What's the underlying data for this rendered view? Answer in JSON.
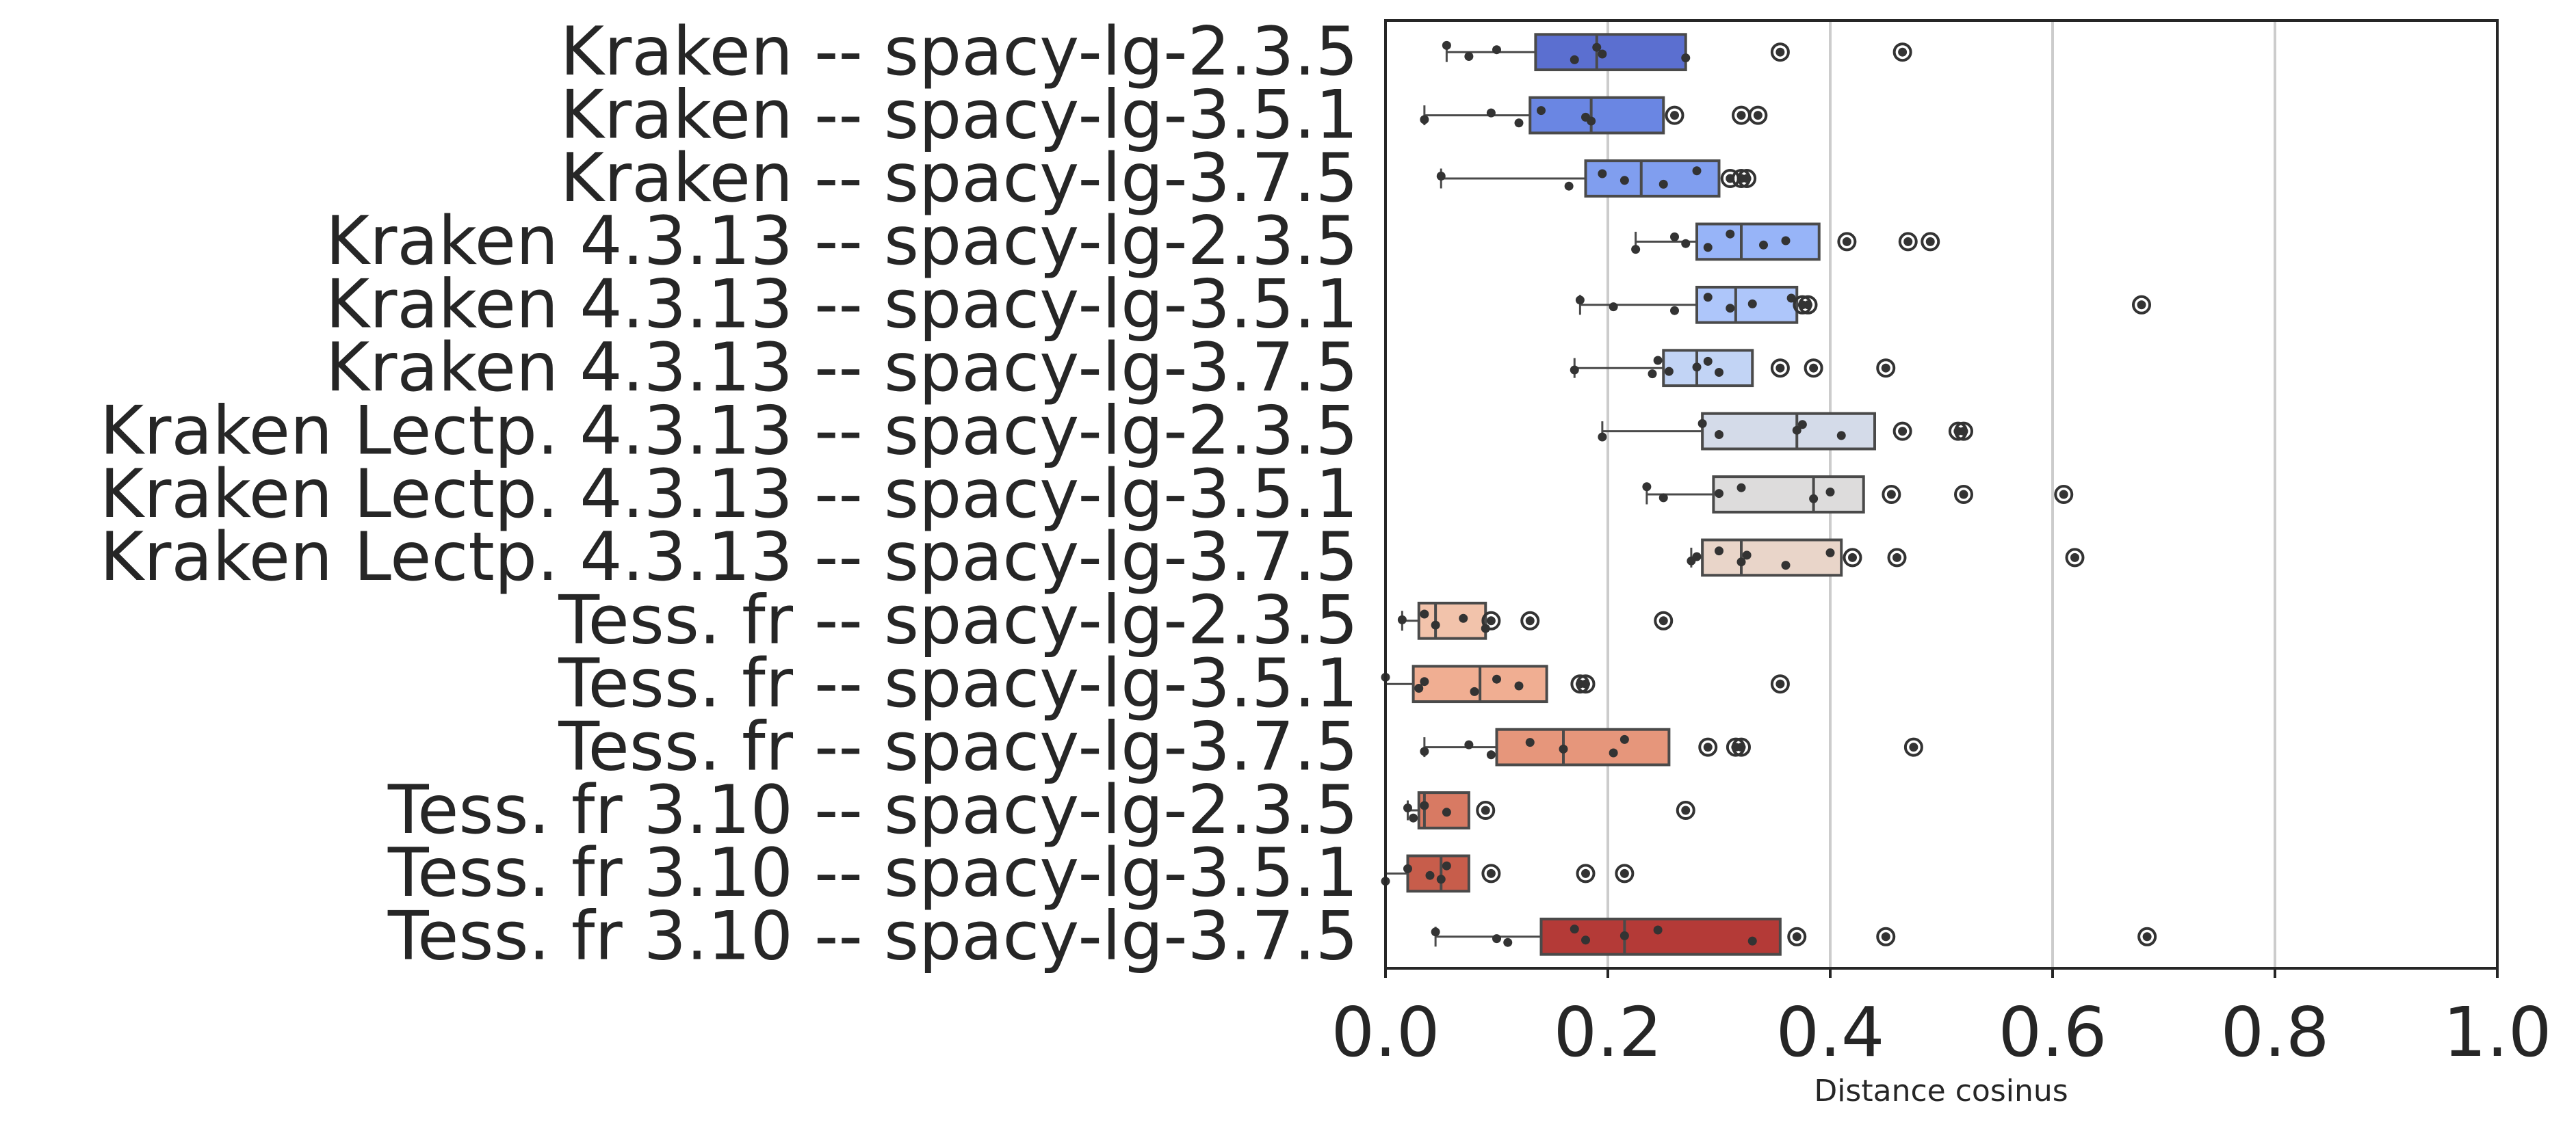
{
  "chart_data": {
    "type": "box",
    "orientation": "horizontal",
    "xlabel": "Distance cosinus",
    "xlim": [
      0.0,
      1.0
    ],
    "xticks": [
      "0.0",
      "0.2",
      "0.4",
      "0.6",
      "0.8",
      "1.0"
    ],
    "grid": "vertical",
    "categories": [
      "Kraken -- spacy-lg-2.3.5",
      "Kraken -- spacy-lg-3.5.1",
      "Kraken -- spacy-lg-3.7.5",
      "Kraken 4.3.13 -- spacy-lg-2.3.5",
      "Kraken 4.3.13 -- spacy-lg-3.5.1",
      "Kraken 4.3.13 -- spacy-lg-3.7.5",
      "Kraken Lectp. 4.3.13 -- spacy-lg-2.3.5",
      "Kraken Lectp. 4.3.13 -- spacy-lg-3.5.1",
      "Kraken Lectp. 4.3.13 -- spacy-lg-3.7.5",
      "Tess. fr -- spacy-lg-2.3.5",
      "Tess. fr -- spacy-lg-3.5.1",
      "Tess. fr -- spacy-lg-3.7.5",
      "Tess. fr 3.10 -- spacy-lg-2.3.5",
      "Tess. fr 3.10 -- spacy-lg-3.5.1",
      "Tess. fr 3.10 -- spacy-lg-3.7.5"
    ],
    "colors": [
      "#5b6fd0",
      "#6a86e3",
      "#809eef",
      "#97b4f8",
      "#aec6fa",
      "#c2d4f5",
      "#d4dbe9",
      "#dddcdc",
      "#e9d5c9",
      "#f2c3ab",
      "#f0ae92",
      "#e6967b",
      "#d87a63",
      "#c75d4b",
      "#b43a37"
    ],
    "boxes": [
      {
        "whislo": 0.055,
        "q1": 0.135,
        "med": 0.19,
        "q3": 0.27,
        "whishi": 0.27,
        "points": [
          0.055,
          0.075,
          0.1,
          0.17,
          0.19,
          0.195,
          0.27
        ],
        "outliers": [
          0.355,
          0.465
        ]
      },
      {
        "whislo": 0.035,
        "q1": 0.13,
        "med": 0.185,
        "q3": 0.25,
        "whishi": 0.25,
        "points": [
          0.035,
          0.095,
          0.12,
          0.14,
          0.18,
          0.185
        ],
        "outliers": [
          0.26,
          0.32,
          0.335
        ]
      },
      {
        "whislo": 0.05,
        "q1": 0.18,
        "med": 0.23,
        "q3": 0.3,
        "whishi": 0.3,
        "points": [
          0.05,
          0.165,
          0.195,
          0.215,
          0.25,
          0.28
        ],
        "outliers": [
          0.31,
          0.32,
          0.325
        ]
      },
      {
        "whislo": 0.225,
        "q1": 0.28,
        "med": 0.32,
        "q3": 0.39,
        "whishi": 0.39,
        "points": [
          0.225,
          0.26,
          0.27,
          0.29,
          0.31,
          0.34,
          0.36
        ],
        "outliers": [
          0.415,
          0.47,
          0.49
        ]
      },
      {
        "whislo": 0.175,
        "q1": 0.28,
        "med": 0.315,
        "q3": 0.37,
        "whishi": 0.37,
        "points": [
          0.175,
          0.205,
          0.26,
          0.29,
          0.31,
          0.33,
          0.365
        ],
        "outliers": [
          0.375,
          0.38,
          0.68
        ]
      },
      {
        "whislo": 0.17,
        "q1": 0.25,
        "med": 0.28,
        "q3": 0.33,
        "whishi": 0.33,
        "points": [
          0.17,
          0.24,
          0.245,
          0.255,
          0.28,
          0.29,
          0.3
        ],
        "outliers": [
          0.355,
          0.385,
          0.45
        ]
      },
      {
        "whislo": 0.195,
        "q1": 0.285,
        "med": 0.37,
        "q3": 0.44,
        "whishi": 0.44,
        "points": [
          0.195,
          0.285,
          0.3,
          0.37,
          0.375,
          0.41
        ],
        "outliers": [
          0.465,
          0.515,
          0.52
        ]
      },
      {
        "whislo": 0.235,
        "q1": 0.295,
        "med": 0.385,
        "q3": 0.43,
        "whishi": 0.43,
        "points": [
          0.235,
          0.25,
          0.3,
          0.32,
          0.385,
          0.4
        ],
        "outliers": [
          0.455,
          0.52,
          0.61
        ]
      },
      {
        "whislo": 0.275,
        "q1": 0.285,
        "med": 0.32,
        "q3": 0.41,
        "whishi": 0.41,
        "points": [
          0.275,
          0.28,
          0.3,
          0.32,
          0.325,
          0.36,
          0.4
        ],
        "outliers": [
          0.42,
          0.46,
          0.62
        ]
      },
      {
        "whislo": 0.015,
        "q1": 0.03,
        "med": 0.045,
        "q3": 0.09,
        "whishi": 0.09,
        "points": [
          0.015,
          0.035,
          0.045,
          0.07,
          0.09
        ],
        "outliers": [
          0.095,
          0.13,
          0.25
        ]
      },
      {
        "whislo": 0.0,
        "q1": 0.025,
        "med": 0.085,
        "q3": 0.145,
        "whishi": 0.145,
        "points": [
          0.0,
          0.03,
          0.035,
          0.08,
          0.1,
          0.12
        ],
        "outliers": [
          0.175,
          0.18,
          0.355
        ]
      },
      {
        "whislo": 0.035,
        "q1": 0.1,
        "med": 0.16,
        "q3": 0.255,
        "whishi": 0.255,
        "points": [
          0.035,
          0.075,
          0.095,
          0.13,
          0.16,
          0.205,
          0.215
        ],
        "outliers": [
          0.29,
          0.315,
          0.32,
          0.475
        ]
      },
      {
        "whislo": 0.02,
        "q1": 0.03,
        "med": 0.035,
        "q3": 0.075,
        "whishi": 0.075,
        "points": [
          0.02,
          0.025,
          0.035,
          0.055
        ],
        "outliers": [
          0.09,
          0.27
        ]
      },
      {
        "whislo": 0.0,
        "q1": 0.02,
        "med": 0.05,
        "q3": 0.075,
        "whishi": 0.075,
        "points": [
          0.0,
          0.02,
          0.04,
          0.05,
          0.055
        ],
        "outliers": [
          0.095,
          0.18,
          0.215
        ]
      },
      {
        "whislo": 0.045,
        "q1": 0.14,
        "med": 0.215,
        "q3": 0.355,
        "whishi": 0.355,
        "points": [
          0.045,
          0.1,
          0.11,
          0.17,
          0.18,
          0.215,
          0.245,
          0.33
        ],
        "outliers": [
          0.37,
          0.45,
          0.685
        ]
      }
    ]
  }
}
